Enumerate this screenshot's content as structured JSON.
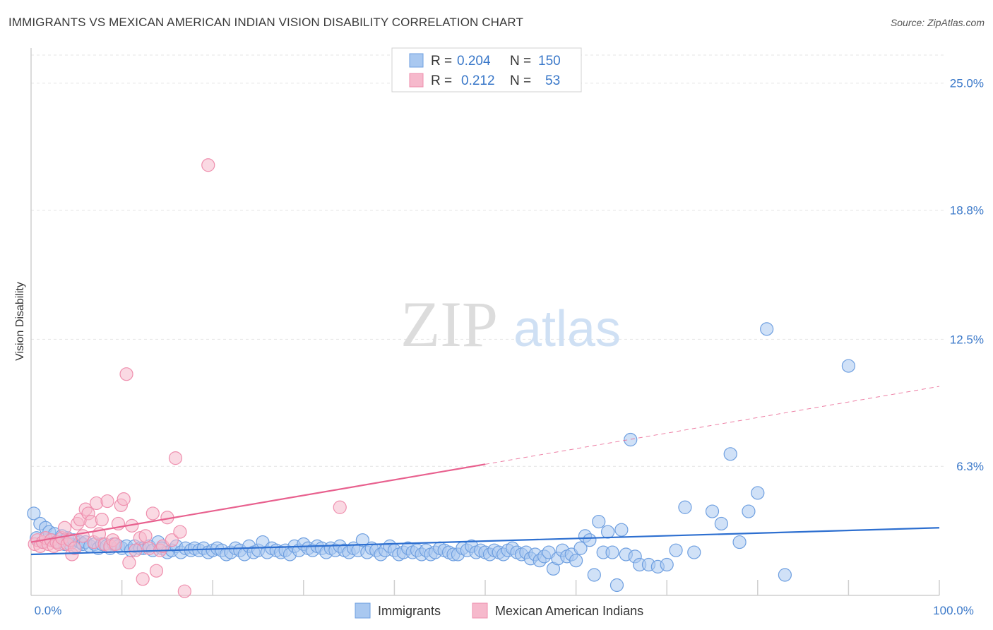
{
  "header": {
    "title": "IMMIGRANTS VS MEXICAN AMERICAN INDIAN VISION DISABILITY CORRELATION CHART",
    "source": "Source: ZipAtlas.com"
  },
  "watermark": {
    "zip": "ZIP",
    "atlas": "atlas"
  },
  "colors": {
    "blue_fill": "#a9c8f0",
    "blue_stroke": "#6e9fe0",
    "blue_line": "#2d6fd0",
    "pink_fill": "#f6b9cc",
    "pink_stroke": "#ef8fae",
    "pink_line": "#e8608e",
    "tick_text": "#3a78c9",
    "grid": "#e4e4e4"
  },
  "legend": {
    "r_label": "R =",
    "n_label": "N =",
    "series": [
      {
        "r": "0.204",
        "n": "150"
      },
      {
        "r": "0.212",
        "n": "53"
      }
    ]
  },
  "chart_data": {
    "type": "scatter",
    "title": "IMMIGRANTS VS MEXICAN AMERICAN INDIAN VISION DISABILITY CORRELATION CHART",
    "xlabel": "",
    "ylabel": "Vision Disability",
    "xlim": [
      0,
      100
    ],
    "ylim": [
      0,
      26.3
    ],
    "x_tick_labels": [
      {
        "value": 0,
        "label": "0.0%"
      },
      {
        "value": 100,
        "label": "100.0%"
      }
    ],
    "y_ticks": [
      {
        "value": 6.3,
        "label": "6.3%"
      },
      {
        "value": 12.5,
        "label": "12.5%"
      },
      {
        "value": 18.8,
        "label": "18.8%"
      },
      {
        "value": 25.0,
        "label": "25.0%"
      }
    ],
    "x_minor_ticks": [
      10,
      20,
      30,
      40,
      50,
      60,
      70,
      80,
      90,
      100
    ],
    "series": [
      {
        "name": "Immigrants",
        "trend": {
          "x0": 0,
          "y0": 2.0,
          "x1": 100,
          "y1": 3.3,
          "solid_to": 100
        },
        "points": [
          [
            0.3,
            4.0
          ],
          [
            0.6,
            2.8
          ],
          [
            1.0,
            3.5
          ],
          [
            1.3,
            2.6
          ],
          [
            1.6,
            3.3
          ],
          [
            2.0,
            3.1
          ],
          [
            2.3,
            2.7
          ],
          [
            2.6,
            3.0
          ],
          [
            3.0,
            2.6
          ],
          [
            3.4,
            2.9
          ],
          [
            3.7,
            2.5
          ],
          [
            4.0,
            2.8
          ],
          [
            4.3,
            2.5
          ],
          [
            4.7,
            2.7
          ],
          [
            5.0,
            2.4
          ],
          [
            5.4,
            2.6
          ],
          [
            5.7,
            2.5
          ],
          [
            6.0,
            2.6
          ],
          [
            6.5,
            2.4
          ],
          [
            7.0,
            2.5
          ],
          [
            7.4,
            2.3
          ],
          [
            7.8,
            2.5
          ],
          [
            8.3,
            2.4
          ],
          [
            8.7,
            2.3
          ],
          [
            9.1,
            2.5
          ],
          [
            9.6,
            2.4
          ],
          [
            10.0,
            2.3
          ],
          [
            10.5,
            2.4
          ],
          [
            11.0,
            2.2
          ],
          [
            11.4,
            2.4
          ],
          [
            12.0,
            2.3
          ],
          [
            12.4,
            2.3
          ],
          [
            13.0,
            2.4
          ],
          [
            13.4,
            2.2
          ],
          [
            14.0,
            2.6
          ],
          [
            14.4,
            2.3
          ],
          [
            15.0,
            2.1
          ],
          [
            15.5,
            2.2
          ],
          [
            16.0,
            2.4
          ],
          [
            16.5,
            2.1
          ],
          [
            17.0,
            2.3
          ],
          [
            17.6,
            2.2
          ],
          [
            18.0,
            2.3
          ],
          [
            18.5,
            2.2
          ],
          [
            19.0,
            2.3
          ],
          [
            19.5,
            2.1
          ],
          [
            20.0,
            2.2
          ],
          [
            20.5,
            2.3
          ],
          [
            21.0,
            2.2
          ],
          [
            21.5,
            2.0
          ],
          [
            22.0,
            2.1
          ],
          [
            22.5,
            2.3
          ],
          [
            23.0,
            2.2
          ],
          [
            23.5,
            2.0
          ],
          [
            24.0,
            2.4
          ],
          [
            24.5,
            2.1
          ],
          [
            25.0,
            2.2
          ],
          [
            25.5,
            2.6
          ],
          [
            26.0,
            2.1
          ],
          [
            26.5,
            2.3
          ],
          [
            27.0,
            2.2
          ],
          [
            27.5,
            2.1
          ],
          [
            28.0,
            2.2
          ],
          [
            28.5,
            2.0
          ],
          [
            29.0,
            2.4
          ],
          [
            29.5,
            2.2
          ],
          [
            30.0,
            2.5
          ],
          [
            30.5,
            2.3
          ],
          [
            31.0,
            2.2
          ],
          [
            31.5,
            2.4
          ],
          [
            32.0,
            2.3
          ],
          [
            32.5,
            2.1
          ],
          [
            33.0,
            2.3
          ],
          [
            33.5,
            2.2
          ],
          [
            34.0,
            2.4
          ],
          [
            34.5,
            2.2
          ],
          [
            35.0,
            2.1
          ],
          [
            35.5,
            2.3
          ],
          [
            36.0,
            2.2
          ],
          [
            36.5,
            2.7
          ],
          [
            37.0,
            2.1
          ],
          [
            37.5,
            2.3
          ],
          [
            38.0,
            2.2
          ],
          [
            38.5,
            2.0
          ],
          [
            39.0,
            2.2
          ],
          [
            39.5,
            2.4
          ],
          [
            40.0,
            2.2
          ],
          [
            40.5,
            2.0
          ],
          [
            41.0,
            2.1
          ],
          [
            41.5,
            2.3
          ],
          [
            42.0,
            2.1
          ],
          [
            42.5,
            2.2
          ],
          [
            43.0,
            2.0
          ],
          [
            43.5,
            2.2
          ],
          [
            44.0,
            2.0
          ],
          [
            44.5,
            2.1
          ],
          [
            45.0,
            2.3
          ],
          [
            45.5,
            2.2
          ],
          [
            46.0,
            2.1
          ],
          [
            46.5,
            2.0
          ],
          [
            47.0,
            2.0
          ],
          [
            47.5,
            2.3
          ],
          [
            48.0,
            2.2
          ],
          [
            48.5,
            2.4
          ],
          [
            49.0,
            2.1
          ],
          [
            49.5,
            2.2
          ],
          [
            50.0,
            2.1
          ],
          [
            50.5,
            2.0
          ],
          [
            51.0,
            2.2
          ],
          [
            51.5,
            2.1
          ],
          [
            52.0,
            2.0
          ],
          [
            52.5,
            2.2
          ],
          [
            53.0,
            2.3
          ],
          [
            53.5,
            2.1
          ],
          [
            54.0,
            2.0
          ],
          [
            54.5,
            2.1
          ],
          [
            55.0,
            1.8
          ],
          [
            55.5,
            2.0
          ],
          [
            56.0,
            1.7
          ],
          [
            56.5,
            1.9
          ],
          [
            57.0,
            2.1
          ],
          [
            57.5,
            1.3
          ],
          [
            58.0,
            1.8
          ],
          [
            58.5,
            2.2
          ],
          [
            59.0,
            1.9
          ],
          [
            59.5,
            2.0
          ],
          [
            60.0,
            1.7
          ],
          [
            60.5,
            2.3
          ],
          [
            61.0,
            2.9
          ],
          [
            61.5,
            2.7
          ],
          [
            62.0,
            1.0
          ],
          [
            62.5,
            3.6
          ],
          [
            63.0,
            2.1
          ],
          [
            63.5,
            3.1
          ],
          [
            64.0,
            2.1
          ],
          [
            64.5,
            0.5
          ],
          [
            65.0,
            3.2
          ],
          [
            65.5,
            2.0
          ],
          [
            66.0,
            7.6
          ],
          [
            66.5,
            1.9
          ],
          [
            67.0,
            1.5
          ],
          [
            68.0,
            1.5
          ],
          [
            69.0,
            1.4
          ],
          [
            70.0,
            1.5
          ],
          [
            71.0,
            2.2
          ],
          [
            72.0,
            4.3
          ],
          [
            73.0,
            2.1
          ],
          [
            75.0,
            4.1
          ],
          [
            76.0,
            3.5
          ],
          [
            77.0,
            6.9
          ],
          [
            78.0,
            2.6
          ],
          [
            79.0,
            4.1
          ],
          [
            80.0,
            5.0
          ],
          [
            81.0,
            13.0
          ],
          [
            83.0,
            1.0
          ],
          [
            90.0,
            11.2
          ]
        ]
      },
      {
        "name": "Mexican American Indians",
        "trend": {
          "x0": 0,
          "y0": 2.6,
          "x1": 100,
          "y1": 10.2,
          "solid_to": 50
        },
        "points": [
          [
            0.4,
            2.5
          ],
          [
            0.7,
            2.7
          ],
          [
            1.0,
            2.4
          ],
          [
            1.3,
            2.6
          ],
          [
            1.6,
            2.8
          ],
          [
            1.9,
            2.5
          ],
          [
            2.2,
            2.7
          ],
          [
            2.5,
            2.4
          ],
          [
            2.8,
            2.6
          ],
          [
            3.1,
            2.5
          ],
          [
            3.4,
            2.8
          ],
          [
            3.7,
            3.3
          ],
          [
            4.0,
            2.5
          ],
          [
            4.3,
            2.7
          ],
          [
            4.5,
            2.0
          ],
          [
            4.8,
            2.3
          ],
          [
            5.1,
            3.5
          ],
          [
            5.4,
            3.7
          ],
          [
            5.7,
            2.9
          ],
          [
            6.0,
            4.2
          ],
          [
            6.3,
            4.0
          ],
          [
            6.6,
            3.6
          ],
          [
            6.9,
            2.6
          ],
          [
            7.2,
            4.5
          ],
          [
            7.5,
            3.0
          ],
          [
            7.8,
            3.7
          ],
          [
            8.1,
            2.5
          ],
          [
            8.4,
            4.6
          ],
          [
            8.7,
            2.4
          ],
          [
            9.0,
            2.7
          ],
          [
            9.3,
            2.5
          ],
          [
            9.6,
            3.5
          ],
          [
            9.9,
            4.4
          ],
          [
            10.2,
            4.7
          ],
          [
            10.5,
            10.8
          ],
          [
            10.8,
            1.6
          ],
          [
            11.1,
            3.4
          ],
          [
            11.5,
            2.2
          ],
          [
            12.0,
            2.8
          ],
          [
            12.3,
            0.8
          ],
          [
            12.6,
            2.9
          ],
          [
            13.0,
            2.3
          ],
          [
            13.4,
            4.0
          ],
          [
            13.8,
            1.2
          ],
          [
            14.2,
            2.2
          ],
          [
            14.5,
            2.4
          ],
          [
            15.0,
            3.8
          ],
          [
            15.5,
            2.7
          ],
          [
            15.9,
            6.7
          ],
          [
            16.4,
            3.1
          ],
          [
            16.9,
            0.2
          ],
          [
            19.5,
            21.0
          ],
          [
            34.0,
            4.3
          ]
        ]
      }
    ]
  },
  "bottom_legend": {
    "items": [
      "Immigrants",
      "Mexican American Indians"
    ]
  }
}
